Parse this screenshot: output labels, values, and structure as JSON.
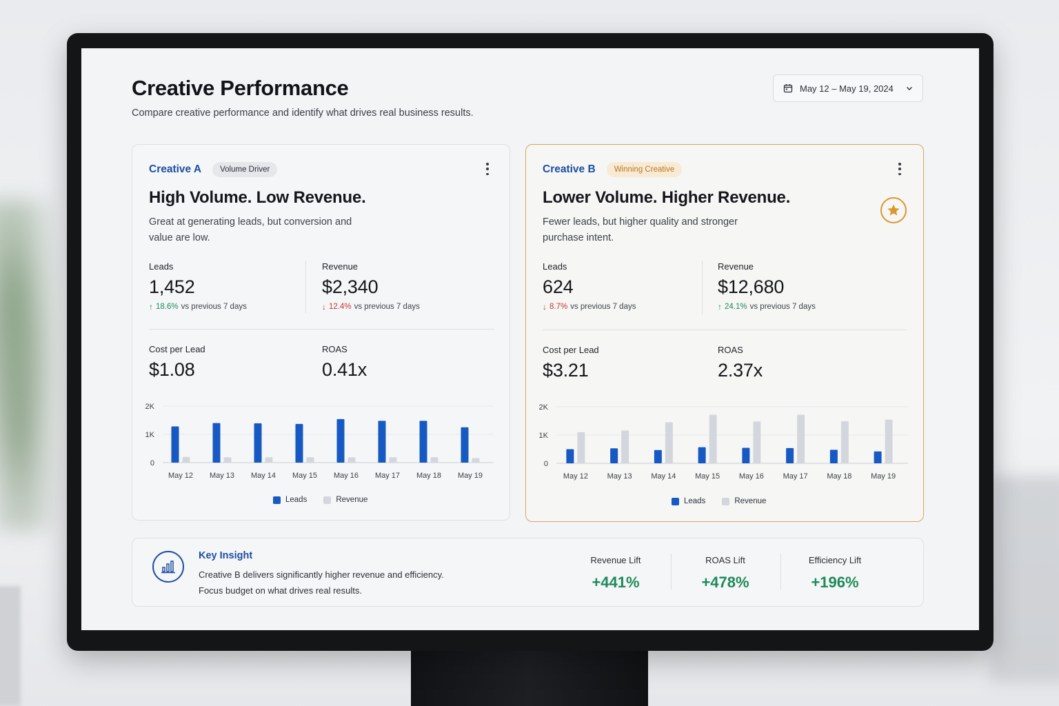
{
  "page": {
    "title": "Creative Performance",
    "subtitle": "Compare creative performance and identify what drives real business results.",
    "date_range": "May 12 – May 19, 2024"
  },
  "colors": {
    "leads": "#1659c2",
    "revenue": "#d3d7dd",
    "up": "#1d8a5a",
    "down": "#c8372f",
    "accent": "#dd962c"
  },
  "cards": [
    {
      "name": "Creative A",
      "tag": "Volume Driver",
      "title": "High Volume. Low Revenue.",
      "description": "Great at generating leads, but conversion and value are low.",
      "leads": {
        "label": "Leads",
        "value": "1,452",
        "delta": "18.6%",
        "direction": "up",
        "suffix": "vs previous 7 days"
      },
      "revenue": {
        "label": "Revenue",
        "value": "$2,340",
        "delta": "12.4%",
        "direction": "down",
        "suffix": "vs previous 7 days"
      },
      "cpl": {
        "label": "Cost per Lead",
        "value": "$1.08"
      },
      "roas": {
        "label": "ROAS",
        "value": "0.41x"
      },
      "legend": {
        "leads": "Leads",
        "revenue": "Revenue"
      }
    },
    {
      "name": "Creative B",
      "tag": "Winning Creative",
      "title": "Lower Volume. Higher Revenue.",
      "description": "Fewer leads, but higher quality and stronger purchase intent.",
      "leads": {
        "label": "Leads",
        "value": "624",
        "delta": "8.7%",
        "direction": "down",
        "suffix": "vs previous 7 days"
      },
      "revenue": {
        "label": "Revenue",
        "value": "$12,680",
        "delta": "24.1%",
        "direction": "up",
        "suffix": "vs previous 7 days"
      },
      "cpl": {
        "label": "Cost per Lead",
        "value": "$3.21"
      },
      "roas": {
        "label": "ROAS",
        "value": "2.37x"
      },
      "legend": {
        "leads": "Leads",
        "revenue": "Revenue"
      }
    }
  ],
  "chart_data": [
    {
      "type": "bar",
      "categories": [
        "May 12",
        "May 13",
        "May 14",
        "May 15",
        "May 16",
        "May 17",
        "May 18",
        "May 19"
      ],
      "series": [
        {
          "name": "Leads",
          "values": [
            1280,
            1400,
            1390,
            1370,
            1540,
            1480,
            1480,
            1250
          ]
        },
        {
          "name": "Revenue",
          "values": [
            200,
            190,
            190,
            190,
            190,
            190,
            190,
            160
          ]
        }
      ],
      "yticks": [
        "0",
        "1K",
        "2K"
      ],
      "ylim": [
        0,
        2000
      ],
      "grid": true,
      "legend": "bottom"
    },
    {
      "type": "bar",
      "categories": [
        "May 12",
        "May 13",
        "May 14",
        "May 15",
        "May 16",
        "May 17",
        "May 18",
        "May 19"
      ],
      "series": [
        {
          "name": "Leads",
          "values": [
            500,
            530,
            470,
            570,
            550,
            540,
            480,
            420
          ]
        },
        {
          "name": "Revenue",
          "values": [
            1100,
            1160,
            1450,
            1720,
            1480,
            1720,
            1490,
            1550
          ]
        }
      ],
      "yticks": [
        "0",
        "1K",
        "2K"
      ],
      "ylim": [
        0,
        2000
      ],
      "grid": true,
      "legend": "bottom"
    }
  ],
  "insight": {
    "title": "Key Insight",
    "line1": "Creative B delivers significantly higher revenue and efficiency.",
    "line2": "Focus budget on what drives real results.",
    "lifts": [
      {
        "label": "Revenue Lift",
        "value": "+441%"
      },
      {
        "label": "ROAS Lift",
        "value": "+478%"
      },
      {
        "label": "Efficiency Lift",
        "value": "+196%"
      }
    ]
  }
}
